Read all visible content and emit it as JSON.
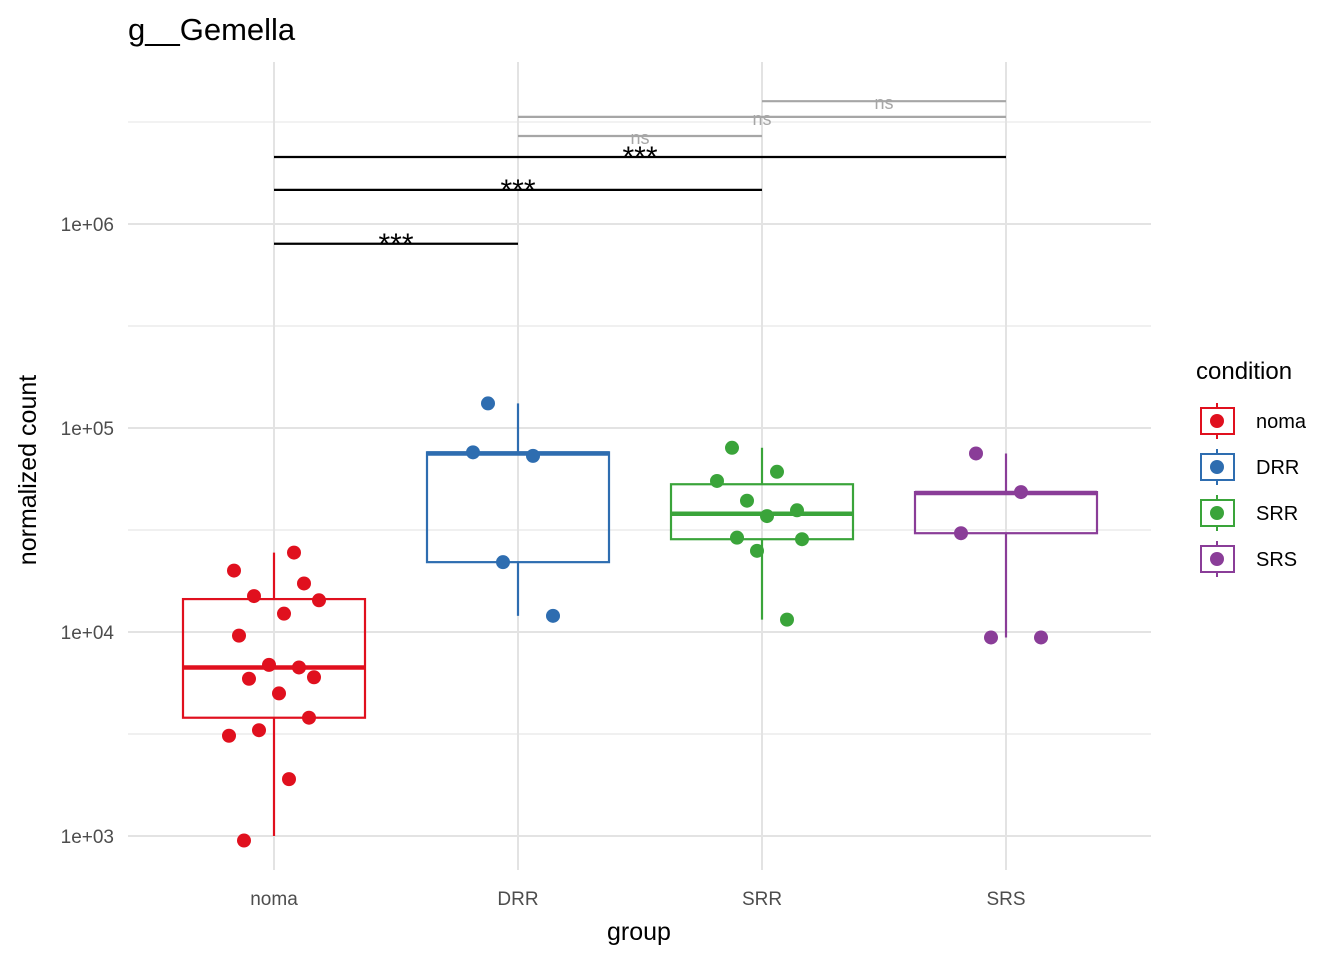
{
  "chart_data": {
    "type": "box",
    "title": "g__Gemella",
    "xlabel": "group",
    "ylabel": "normalized count",
    "y_scale": "log10",
    "ylim": [
      700,
      6000000
    ],
    "y_ticks": [
      1000,
      10000,
      100000,
      1000000
    ],
    "y_tick_labels": [
      "1e+03",
      "1e+04",
      "1e+05",
      "1e+06"
    ],
    "categories": [
      "noma",
      "DRR",
      "SRR",
      "SRS"
    ],
    "grid": true,
    "legend": {
      "title": "condition",
      "position": "right",
      "entries": [
        "noma",
        "DRR",
        "SRR",
        "SRS"
      ]
    },
    "colors": {
      "noma": "#e0101e",
      "DRR": "#2e6db0",
      "SRR": "#3aa43a",
      "SRS": "#8a3d98"
    },
    "boxes": [
      {
        "category": "noma",
        "whisker_low": 1000,
        "q1": 3800,
        "median": 6700,
        "q3": 14500,
        "whisker_high": 24500
      },
      {
        "category": "DRR",
        "whisker_low": 12000,
        "q1": 22000,
        "median": 75000,
        "q3": 76000,
        "whisker_high": 132000
      },
      {
        "category": "SRR",
        "whisker_low": 11500,
        "q1": 28500,
        "median": 38000,
        "q3": 53000,
        "whisker_high": 80000
      },
      {
        "category": "SRS",
        "whisker_low": 9400,
        "q1": 30500,
        "median": 48000,
        "q3": 48500,
        "whisker_high": 75000
      }
    ],
    "points": [
      {
        "category": "noma",
        "values": [
          950,
          1900,
          3100,
          3300,
          3800,
          5000,
          5900,
          6000,
          6900,
          6700,
          9600,
          12300,
          14300,
          15000,
          17300,
          20000,
          24500
        ]
      },
      {
        "category": "DRR",
        "values": [
          132000,
          73000,
          76000,
          22000,
          12000
        ]
      },
      {
        "category": "SRR",
        "values": [
          80000,
          61000,
          55000,
          44000,
          39500,
          37000,
          29000,
          28500,
          25000,
          11500
        ]
      },
      {
        "category": "SRS",
        "values": [
          75000,
          48500,
          30500,
          9400,
          9400
        ]
      }
    ],
    "comparisons": [
      {
        "from": "noma",
        "to": "DRR",
        "label": "***",
        "y": 800000
      },
      {
        "from": "noma",
        "to": "SRR",
        "label": "***",
        "y": 1470000
      },
      {
        "from": "noma",
        "to": "SRS",
        "label": "***",
        "y": 2130000
      },
      {
        "from": "DRR",
        "to": "SRR",
        "label": "ns",
        "y": 2700000
      },
      {
        "from": "DRR",
        "to": "SRS",
        "label": "ns",
        "y": 3350000
      },
      {
        "from": "SRR",
        "to": "SRS",
        "label": "ns",
        "y": 4000000
      }
    ]
  }
}
